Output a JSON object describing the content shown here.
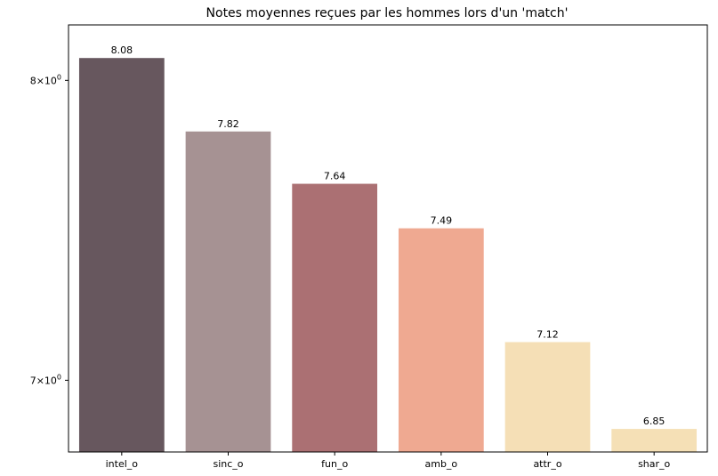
{
  "chart_data": {
    "type": "bar",
    "title": "Notes moyennes reçues par les hommes lors d'un 'match'",
    "xlabel": "",
    "ylabel": "",
    "yscale": "log",
    "ylim": [
      6.78,
      8.2
    ],
    "grid": false,
    "legend": "none",
    "categories": [
      "intel_o",
      "sinc_o",
      "fun_o",
      "amb_o",
      "attr_o",
      "shar_o"
    ],
    "values": [
      8.08,
      7.82,
      7.64,
      7.49,
      7.12,
      6.85
    ],
    "value_labels": [
      "8.08",
      "7.82",
      "7.64",
      "7.49",
      "7.12",
      "6.85"
    ],
    "colors": [
      "#67575e",
      "#a69293",
      "#ab7073",
      "#efa991",
      "#f5dfb6",
      "#f5e0b6"
    ],
    "yticks": [
      {
        "value": 8,
        "base": "8",
        "times": "×",
        "exp_base": "10",
        "exp": "0"
      },
      {
        "value": 7,
        "base": "7",
        "times": "×",
        "exp_base": "10",
        "exp": "0"
      }
    ]
  }
}
